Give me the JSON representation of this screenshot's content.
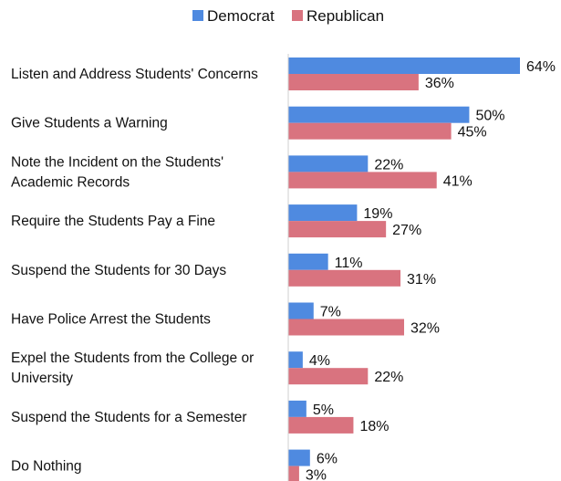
{
  "chart_data": {
    "type": "bar",
    "orientation": "horizontal",
    "title": "",
    "xlabel": "",
    "ylabel": "",
    "xlim": [
      0,
      64
    ],
    "grid": false,
    "legend_position": "top",
    "categories": [
      [
        "Listen and Address Students' Concerns"
      ],
      [
        "Give Students a Warning"
      ],
      [
        "Note the Incident on the Students'",
        "Academic Records"
      ],
      [
        "Require the Students Pay a Fine"
      ],
      [
        "Suspend the Students for 30 Days"
      ],
      [
        "Have Police Arrest the Students"
      ],
      [
        "Expel the Students from the College or",
        "University"
      ],
      [
        "Suspend the Students for a Semester"
      ],
      [
        "Do Nothing"
      ]
    ],
    "series": [
      {
        "name": "Democrat",
        "color": "#4f8ae0",
        "values": [
          64,
          50,
          22,
          19,
          11,
          7,
          4,
          5,
          6
        ],
        "labels": [
          "64%",
          "50%",
          "22%",
          "19%",
          "11%",
          "7%",
          "4%",
          "5%",
          "6%"
        ]
      },
      {
        "name": "Republican",
        "color": "#d9737f",
        "values": [
          36,
          45,
          41,
          27,
          31,
          32,
          22,
          18,
          3
        ],
        "labels": [
          "36%",
          "45%",
          "41%",
          "27%",
          "31%",
          "32%",
          "22%",
          "18%",
          "3%"
        ]
      }
    ]
  }
}
